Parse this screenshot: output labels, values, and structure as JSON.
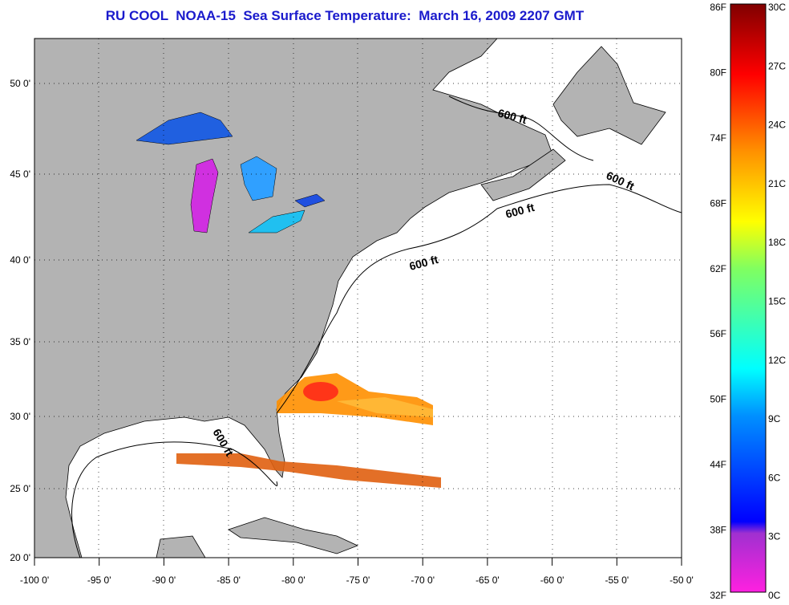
{
  "title": "RU COOL  NOAA-15  Sea Surface Temperature:  March 16, 2009 2207 GMT",
  "map": {
    "lon_labels": [
      "-100 0'",
      "-95 0'",
      "-90 0'",
      "-85 0'",
      "-80 0'",
      "-75 0'",
      "-70 0'",
      "-65 0'",
      "-60 0'",
      "-55 0'",
      "-50 0'"
    ],
    "lat_labels": [
      "50 0'",
      "45 0'",
      "40 0'",
      "35 0'",
      "30 0'",
      "25 0'",
      "20 0'"
    ],
    "lon_range": [
      -100,
      -50
    ],
    "lat_range": [
      20,
      52.5
    ],
    "contour_label": "600 ft",
    "land_color": "#b3b3b3",
    "ocean_color": "#ffffff"
  },
  "colorbar": {
    "fahrenheit": [
      "86F",
      "80F",
      "74F",
      "68F",
      "62F",
      "56F",
      "50F",
      "44F",
      "38F",
      "32F"
    ],
    "celsius": [
      "30C",
      "27C",
      "24C",
      "21C",
      "18C",
      "15C",
      "12C",
      "9C",
      "6C",
      "3C",
      "0C"
    ],
    "range_c": [
      0,
      30
    ]
  }
}
